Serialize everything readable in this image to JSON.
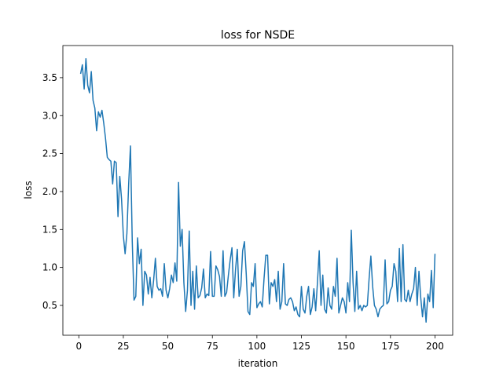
{
  "chart_data": {
    "type": "line",
    "title": "loss for NSDE",
    "xlabel": "iteration",
    "ylabel": "loss",
    "x": [
      1,
      2,
      3,
      4,
      5,
      6,
      7,
      8,
      9,
      10,
      11,
      12,
      13,
      14,
      15,
      16,
      17,
      18,
      19,
      20,
      21,
      22,
      23,
      24,
      25,
      26,
      27,
      28,
      29,
      30,
      31,
      32,
      33,
      34,
      35,
      36,
      37,
      38,
      39,
      40,
      41,
      42,
      43,
      44,
      45,
      46,
      47,
      48,
      49,
      50,
      51,
      52,
      53,
      54,
      55,
      56,
      57,
      58,
      59,
      60,
      61,
      62,
      63,
      64,
      65,
      66,
      67,
      68,
      69,
      70,
      71,
      72,
      73,
      74,
      75,
      76,
      77,
      78,
      79,
      80,
      81,
      82,
      83,
      84,
      85,
      86,
      87,
      88,
      89,
      90,
      91,
      92,
      93,
      94,
      95,
      96,
      97,
      98,
      99,
      100,
      101,
      102,
      103,
      104,
      105,
      106,
      107,
      108,
      109,
      110,
      111,
      112,
      113,
      114,
      115,
      116,
      117,
      118,
      119,
      120,
      121,
      122,
      123,
      124,
      125,
      126,
      127,
      128,
      129,
      130,
      131,
      132,
      133,
      134,
      135,
      136,
      137,
      138,
      139,
      140,
      141,
      142,
      143,
      144,
      145,
      146,
      147,
      148,
      149,
      150,
      151,
      152,
      153,
      154,
      155,
      156,
      157,
      158,
      159,
      160,
      161,
      162,
      163,
      164,
      165,
      166,
      167,
      168,
      169,
      170,
      171,
      172,
      173,
      174,
      175,
      176,
      177,
      178,
      179,
      180,
      181,
      182,
      183,
      184,
      185,
      186,
      187,
      188,
      189,
      190,
      191,
      192,
      193,
      194,
      195,
      196,
      197,
      198,
      199,
      200
    ],
    "series": [
      {
        "name": "loss",
        "color": "#1f77b4",
        "values": [
          3.55,
          3.67,
          3.35,
          3.75,
          3.4,
          3.3,
          3.58,
          3.2,
          3.1,
          2.8,
          3.05,
          2.98,
          3.07,
          2.9,
          2.7,
          2.45,
          2.42,
          2.4,
          2.1,
          2.4,
          2.38,
          1.67,
          2.2,
          1.9,
          1.42,
          1.18,
          1.45,
          2.1,
          2.6,
          1.35,
          0.57,
          0.62,
          1.39,
          1.05,
          1.24,
          0.5,
          0.95,
          0.9,
          0.65,
          0.87,
          0.6,
          0.83,
          1.12,
          0.75,
          0.7,
          0.72,
          0.62,
          1.05,
          0.7,
          0.6,
          0.72,
          0.9,
          0.8,
          1.06,
          0.82,
          2.12,
          1.28,
          1.5,
          0.8,
          0.42,
          0.7,
          1.48,
          0.5,
          0.95,
          0.45,
          1.02,
          0.6,
          0.63,
          0.73,
          0.98,
          0.6,
          0.65,
          0.63,
          1.21,
          0.62,
          0.62,
          1.02,
          0.97,
          0.88,
          0.62,
          1.22,
          0.62,
          0.67,
          0.9,
          1.1,
          1.26,
          0.6,
          0.97,
          1.24,
          0.62,
          0.75,
          1.22,
          1.34,
          0.92,
          0.42,
          0.38,
          0.8,
          0.75,
          1.05,
          0.47,
          0.52,
          0.55,
          0.48,
          0.85,
          1.16,
          1.16,
          0.52,
          0.8,
          0.75,
          0.84,
          0.55,
          0.95,
          0.45,
          0.55,
          1.05,
          0.52,
          0.5,
          0.58,
          0.6,
          0.55,
          0.43,
          0.48,
          0.38,
          0.35,
          0.75,
          0.45,
          0.4,
          0.62,
          0.75,
          0.38,
          0.48,
          0.72,
          0.43,
          0.8,
          1.22,
          0.5,
          0.9,
          0.45,
          0.4,
          0.73,
          0.5,
          0.45,
          0.75,
          0.62,
          1.12,
          0.4,
          0.5,
          0.6,
          0.55,
          0.4,
          0.8,
          0.55,
          1.49,
          0.8,
          0.42,
          0.95,
          0.45,
          0.5,
          0.43,
          0.5,
          0.48,
          0.5,
          0.85,
          1.15,
          0.75,
          0.5,
          0.45,
          0.35,
          0.45,
          0.48,
          0.5,
          1.1,
          0.52,
          0.55,
          0.7,
          0.75,
          1.05,
          0.95,
          0.55,
          1.25,
          0.55,
          1.3,
          0.58,
          0.55,
          0.7,
          0.55,
          0.65,
          0.72,
          1.0,
          0.5,
          0.95,
          0.6,
          0.35,
          0.6,
          0.28,
          0.65,
          0.55,
          0.96,
          0.47,
          1.18
        ]
      }
    ],
    "xlim": [
      -8.95,
      209.95
    ],
    "xticks": [
      0,
      25,
      50,
      75,
      100,
      125,
      150,
      175,
      200
    ],
    "ylim": [
      0.107,
      3.923
    ],
    "yticks": [
      0.5,
      {
        "value": 1,
        "label": "1.0"
      },
      1.5,
      {
        "value": 2,
        "label": "2.0"
      },
      2.5,
      {
        "value": 3,
        "label": "3.0"
      },
      3.5
    ]
  }
}
